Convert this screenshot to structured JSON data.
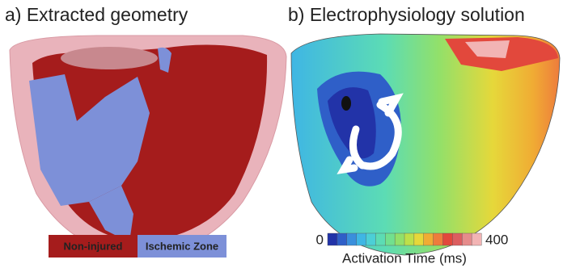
{
  "panels": [
    {
      "title": "a) Extracted geometry",
      "legend": [
        {
          "label": "Non-injured",
          "color": "#a51c1c"
        },
        {
          "label": "Ischemic Zone",
          "color": "#7d90d8"
        }
      ]
    },
    {
      "title": "b) Electrophysiology solution",
      "colorbar": {
        "min": 0,
        "max": 400,
        "label": "Activation Time (ms)",
        "colors": [
          "#2233a8",
          "#2f5fc8",
          "#3a8fdc",
          "#3fb6e4",
          "#4ccfd6",
          "#5cdcb4",
          "#72e08e",
          "#92e06a",
          "#bde04a",
          "#e6d83a",
          "#f0ac34",
          "#ee7c3c",
          "#e2483c",
          "#dc5e60",
          "#e68c8c",
          "#f2b4b4"
        ]
      }
    }
  ]
}
